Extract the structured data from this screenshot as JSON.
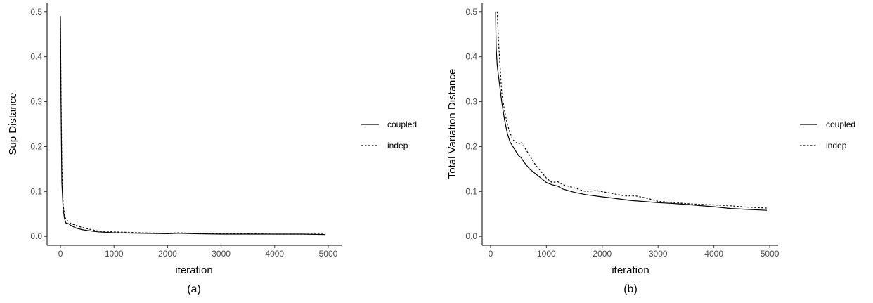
{
  "chart_data": [
    {
      "type": "line",
      "caption": "(a)",
      "xlabel": "iteration",
      "ylabel": "Sup Distance",
      "xlim": [
        -250,
        5250
      ],
      "ylim": [
        -0.02,
        0.52
      ],
      "x_ticks": [
        "0",
        "1000",
        "2000",
        "3000",
        "4000",
        "5000"
      ],
      "y_ticks": [
        "0.0",
        "0.1",
        "0.2",
        "0.3",
        "0.4",
        "0.5"
      ],
      "legend": {
        "position": "right",
        "entries": [
          "coupled",
          "indep"
        ]
      },
      "series": [
        {
          "name": "coupled",
          "linestyle": "solid",
          "x": [
            0,
            10,
            25,
            50,
            75,
            100,
            150,
            200,
            300,
            400,
            500,
            700,
            1000,
            1500,
            2000,
            2200,
            2500,
            3000,
            3500,
            4000,
            4500,
            4950
          ],
          "y": [
            0.49,
            0.3,
            0.12,
            0.06,
            0.04,
            0.03,
            0.028,
            0.024,
            0.018,
            0.015,
            0.013,
            0.01,
            0.008,
            0.007,
            0.006,
            0.007,
            0.006,
            0.005,
            0.005,
            0.005,
            0.005,
            0.004
          ]
        },
        {
          "name": "indep",
          "linestyle": "dashed",
          "x": [
            0,
            10,
            25,
            50,
            75,
            100,
            150,
            200,
            300,
            400,
            500,
            700,
            1000,
            1500,
            2000,
            2200,
            2500,
            3000,
            3500,
            4000,
            4500,
            4950
          ],
          "y": [
            0.48,
            0.33,
            0.16,
            0.07,
            0.048,
            0.038,
            0.033,
            0.028,
            0.024,
            0.02,
            0.017,
            0.012,
            0.01,
            0.008,
            0.007,
            0.008,
            0.007,
            0.006,
            0.006,
            0.005,
            0.005,
            0.005
          ]
        }
      ]
    },
    {
      "type": "line",
      "caption": "(b)",
      "xlabel": "iteration",
      "ylabel": "Total Variation Distance",
      "xlim": [
        -150,
        5150
      ],
      "ylim": [
        -0.02,
        0.52
      ],
      "x_ticks": [
        "0",
        "1000",
        "2000",
        "3000",
        "4000",
        "5000"
      ],
      "y_ticks": [
        "0.0",
        "0.1",
        "0.2",
        "0.3",
        "0.4",
        "0.5"
      ],
      "legend": {
        "position": "right",
        "entries": [
          "coupled",
          "indep"
        ]
      },
      "series": [
        {
          "name": "coupled",
          "linestyle": "solid",
          "x": [
            90,
            100,
            120,
            150,
            200,
            250,
            300,
            350,
            400,
            450,
            500,
            550,
            600,
            700,
            800,
            900,
            1000,
            1100,
            1200,
            1300,
            1500,
            1700,
            2000,
            2200,
            2500,
            2800,
            3000,
            3300,
            3600,
            4000,
            4300,
            4600,
            4950
          ],
          "y": [
            0.5,
            0.42,
            0.38,
            0.35,
            0.3,
            0.26,
            0.23,
            0.21,
            0.2,
            0.19,
            0.18,
            0.175,
            0.165,
            0.15,
            0.14,
            0.13,
            0.12,
            0.115,
            0.112,
            0.105,
            0.098,
            0.093,
            0.088,
            0.085,
            0.08,
            0.077,
            0.075,
            0.073,
            0.07,
            0.066,
            0.062,
            0.06,
            0.058
          ]
        },
        {
          "name": "indep",
          "linestyle": "dashed",
          "x": [
            120,
            130,
            150,
            200,
            250,
            300,
            350,
            400,
            450,
            500,
            550,
            600,
            700,
            800,
            900,
            1000,
            1100,
            1200,
            1300,
            1500,
            1700,
            1900,
            2200,
            2400,
            2600,
            2800,
            3000,
            3300,
            3600,
            4000,
            4300,
            4600,
            4950
          ],
          "y": [
            0.5,
            0.47,
            0.42,
            0.32,
            0.28,
            0.25,
            0.23,
            0.215,
            0.21,
            0.205,
            0.21,
            0.2,
            0.18,
            0.16,
            0.145,
            0.13,
            0.12,
            0.122,
            0.115,
            0.108,
            0.1,
            0.102,
            0.095,
            0.09,
            0.09,
            0.085,
            0.078,
            0.075,
            0.072,
            0.07,
            0.068,
            0.065,
            0.063
          ]
        }
      ]
    }
  ]
}
